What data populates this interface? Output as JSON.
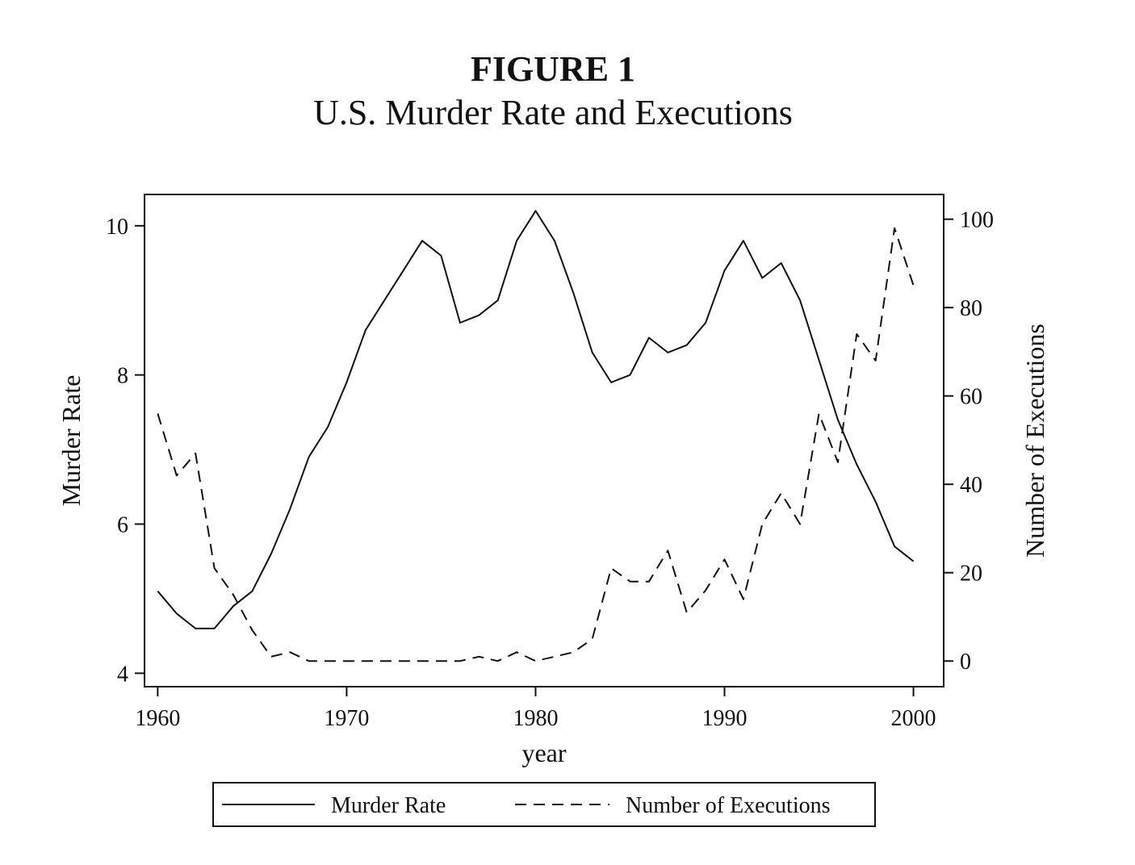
{
  "figure": {
    "label": "FIGURE 1",
    "title": "U.S. Murder Rate and Executions"
  },
  "chart_data": {
    "type": "line",
    "x_label": "year",
    "y_left_label": "Murder Rate",
    "y_right_label": "Number of Executions",
    "x_ticks": [
      1960,
      1970,
      1980,
      1990,
      2000
    ],
    "y_left_ticks": [
      4,
      6,
      8,
      10
    ],
    "y_right_ticks": [
      0,
      20,
      40,
      60,
      80,
      100
    ],
    "x_range": [
      1959.3,
      2001.6
    ],
    "y_left_range": [
      3.82,
      10.42
    ],
    "y_right_range": [
      -5.8,
      105.6
    ],
    "series": [
      {
        "name": "Murder Rate",
        "axis": "left",
        "style": "solid",
        "x": [
          1960,
          1961,
          1962,
          1963,
          1964,
          1965,
          1966,
          1967,
          1968,
          1969,
          1970,
          1971,
          1972,
          1973,
          1974,
          1975,
          1976,
          1977,
          1978,
          1979,
          1980,
          1981,
          1982,
          1983,
          1984,
          1985,
          1986,
          1987,
          1988,
          1989,
          1990,
          1991,
          1992,
          1993,
          1994,
          1995,
          1996,
          1997,
          1998,
          1999,
          2000
        ],
        "values": [
          5.1,
          4.8,
          4.6,
          4.6,
          4.9,
          5.1,
          5.6,
          6.2,
          6.9,
          7.3,
          7.9,
          8.6,
          9.0,
          9.4,
          9.8,
          9.6,
          8.7,
          8.8,
          9.0,
          9.8,
          10.2,
          9.8,
          9.1,
          8.3,
          7.9,
          8.0,
          8.5,
          8.3,
          8.4,
          8.7,
          9.4,
          9.8,
          9.3,
          9.5,
          9.0,
          8.2,
          7.4,
          6.8,
          6.3,
          5.7,
          5.5
        ]
      },
      {
        "name": "Number of Executions",
        "axis": "right",
        "style": "dashed",
        "x": [
          1960,
          1961,
          1962,
          1963,
          1964,
          1965,
          1966,
          1967,
          1968,
          1969,
          1970,
          1971,
          1972,
          1973,
          1974,
          1975,
          1976,
          1977,
          1978,
          1979,
          1980,
          1981,
          1982,
          1983,
          1984,
          1985,
          1986,
          1987,
          1988,
          1989,
          1990,
          1991,
          1992,
          1993,
          1994,
          1995,
          1996,
          1997,
          1998,
          1999,
          2000
        ],
        "values": [
          56,
          42,
          47,
          21,
          15,
          7,
          1,
          2,
          0,
          0,
          0,
          0,
          0,
          0,
          0,
          0,
          0,
          1,
          0,
          2,
          0,
          1,
          2,
          5,
          21,
          18,
          18,
          25,
          11,
          16,
          23,
          14,
          31,
          38,
          31,
          56,
          45,
          74,
          68,
          98,
          85
        ]
      }
    ],
    "legend": {
      "position": "bottom",
      "entries": [
        "Murder Rate",
        "Number of Executions"
      ]
    }
  }
}
